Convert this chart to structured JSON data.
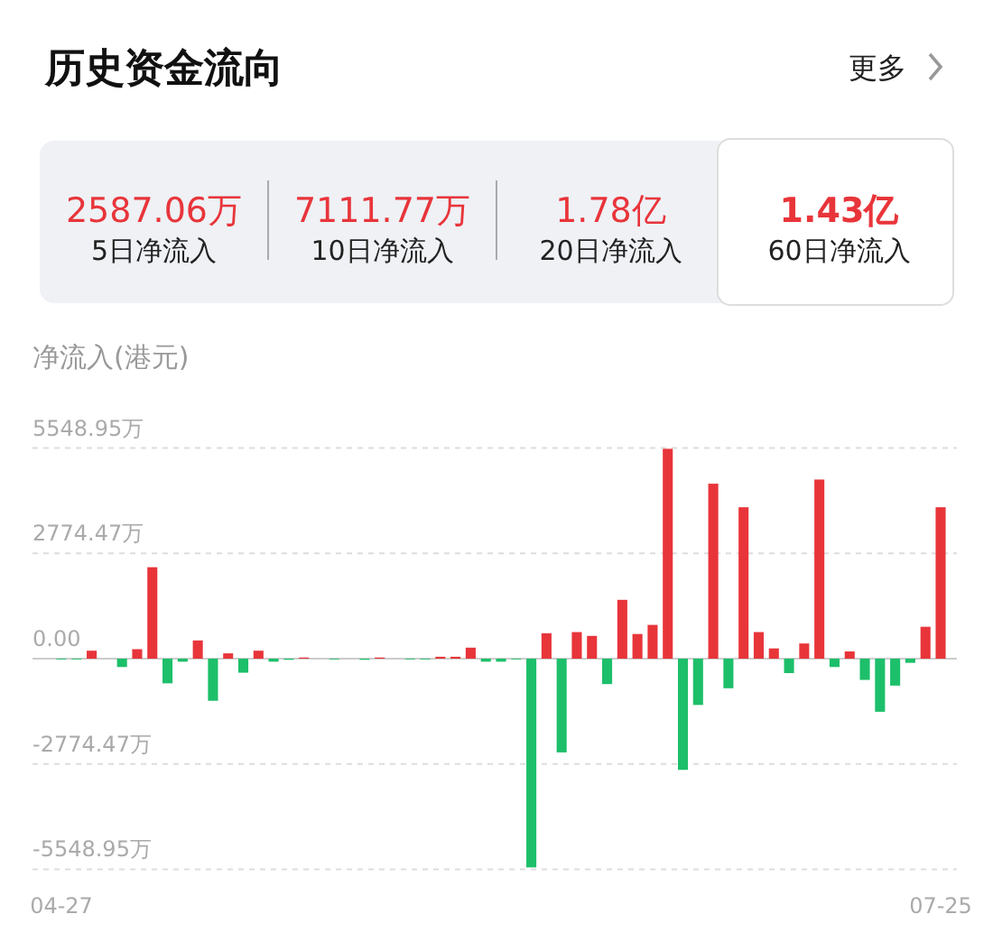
{
  "chart_data": [
    {
      "type": "other",
      "title": "历史资金流向",
      "annotations": [
        "更多"
      ],
      "categories": [
        "5日净流入",
        "10日净流入",
        "20日净流入",
        "60日净流入"
      ],
      "value_labels": [
        "2587.06万",
        "7111.77万",
        "1.78亿",
        "1.43亿"
      ],
      "color": "#e8353a"
    },
    {
      "type": "bar",
      "ylabel": "净流入(港元)",
      "categories": [
        "04-27",
        null,
        null,
        null,
        null,
        null,
        null,
        null,
        null,
        null,
        null,
        null,
        null,
        null,
        null,
        null,
        null,
        null,
        null,
        null,
        null,
        null,
        null,
        null,
        null,
        null,
        null,
        null,
        null,
        null,
        null,
        null,
        null,
        null,
        null,
        null,
        null,
        null,
        null,
        null,
        null,
        null,
        null,
        null,
        null,
        null,
        null,
        null,
        null,
        null,
        null,
        null,
        null,
        null,
        null,
        null,
        null,
        null,
        "07-25"
      ],
      "values": [
        -20,
        -20,
        210,
        0,
        -220,
        250,
        2410,
        -650,
        -80,
        480,
        -1110,
        140,
        -370,
        210,
        -80,
        -30,
        30,
        0,
        -20,
        0,
        -30,
        30,
        0,
        -20,
        -20,
        50,
        50,
        290,
        -80,
        -80,
        -20,
        -5500,
        670,
        -2470,
        700,
        600,
        -670,
        1550,
        650,
        890,
        5530,
        -2930,
        -1220,
        4610,
        -780,
        3990,
        700,
        270,
        -380,
        400,
        4720,
        -220,
        190,
        -560,
        -1400,
        -710,
        -110,
        840,
        3990
      ],
      "colors": [
        "#1dbf6a",
        "#1dbf6a",
        "#e8353a",
        "#cccccc",
        "#1dbf6a",
        "#e8353a",
        "#e8353a",
        "#1dbf6a",
        "#1dbf6a",
        "#e8353a",
        "#1dbf6a",
        "#e8353a",
        "#1dbf6a",
        "#e8353a",
        "#1dbf6a",
        "#1dbf6a",
        "#e8353a",
        "#cccccc",
        "#1dbf6a",
        "#cccccc",
        "#1dbf6a",
        "#e8353a",
        "#cccccc",
        "#1dbf6a",
        "#1dbf6a",
        "#e8353a",
        "#e8353a",
        "#e8353a",
        "#1dbf6a",
        "#1dbf6a",
        "#1dbf6a",
        "#1dbf6a",
        "#e8353a",
        "#1dbf6a",
        "#e8353a",
        "#e8353a",
        "#1dbf6a",
        "#e8353a",
        "#e8353a",
        "#e8353a",
        "#e8353a",
        "#1dbf6a",
        "#1dbf6a",
        "#e8353a",
        "#1dbf6a",
        "#e8353a",
        "#e8353a",
        "#e8353a",
        "#1dbf6a",
        "#e8353a",
        "#e8353a",
        "#1dbf6a",
        "#e8353a",
        "#1dbf6a",
        "#1dbf6a",
        "#1dbf6a",
        "#1dbf6a",
        "#e8353a",
        "#e8353a"
      ],
      "ylim": [
        -5548.95,
        5548.95
      ],
      "yticks": [
        {
          "value": 5548.95,
          "label": "5548.95万"
        },
        {
          "value": 2774.47,
          "label": "2774.47万"
        },
        {
          "value": 0,
          "label": "0.00"
        },
        {
          "value": -2774.47,
          "label": "-2774.47万"
        },
        {
          "value": -5548.95,
          "label": "-5548.95万"
        }
      ],
      "grid": "y"
    }
  ]
}
